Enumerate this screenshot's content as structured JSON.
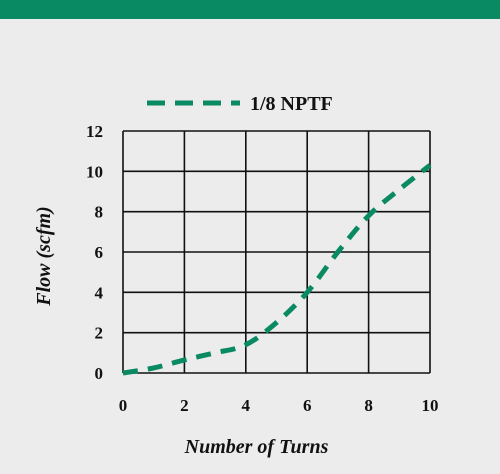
{
  "colors": {
    "accent_bar": "#0a8a62",
    "series": "#0a8a62",
    "background": "#ececec",
    "grid": "#111111"
  },
  "chart_data": {
    "type": "line",
    "title": "",
    "xlabel": "Number of Turns",
    "ylabel": "Flow (scfm)",
    "xlim": [
      0,
      10
    ],
    "ylim": [
      0,
      12
    ],
    "x_ticks": [
      0,
      2,
      4,
      6,
      8,
      10
    ],
    "y_ticks": [
      0,
      2,
      4,
      6,
      8,
      10,
      12
    ],
    "x_tick_labels": [
      "0",
      "2",
      "4",
      "6",
      "8",
      "10"
    ],
    "y_tick_labels": [
      "0",
      "2",
      "4",
      "6",
      "8",
      "10",
      "12"
    ],
    "grid": true,
    "legend": "top",
    "series": [
      {
        "name": "1/8 NPTF",
        "style": "dashed",
        "x": [
          0,
          1,
          2,
          3,
          4,
          5,
          6,
          7,
          8,
          9,
          10
        ],
        "y": [
          0,
          0.25,
          0.65,
          1.0,
          1.4,
          2.5,
          4.0,
          6.0,
          7.8,
          9.1,
          10.3
        ]
      }
    ]
  }
}
